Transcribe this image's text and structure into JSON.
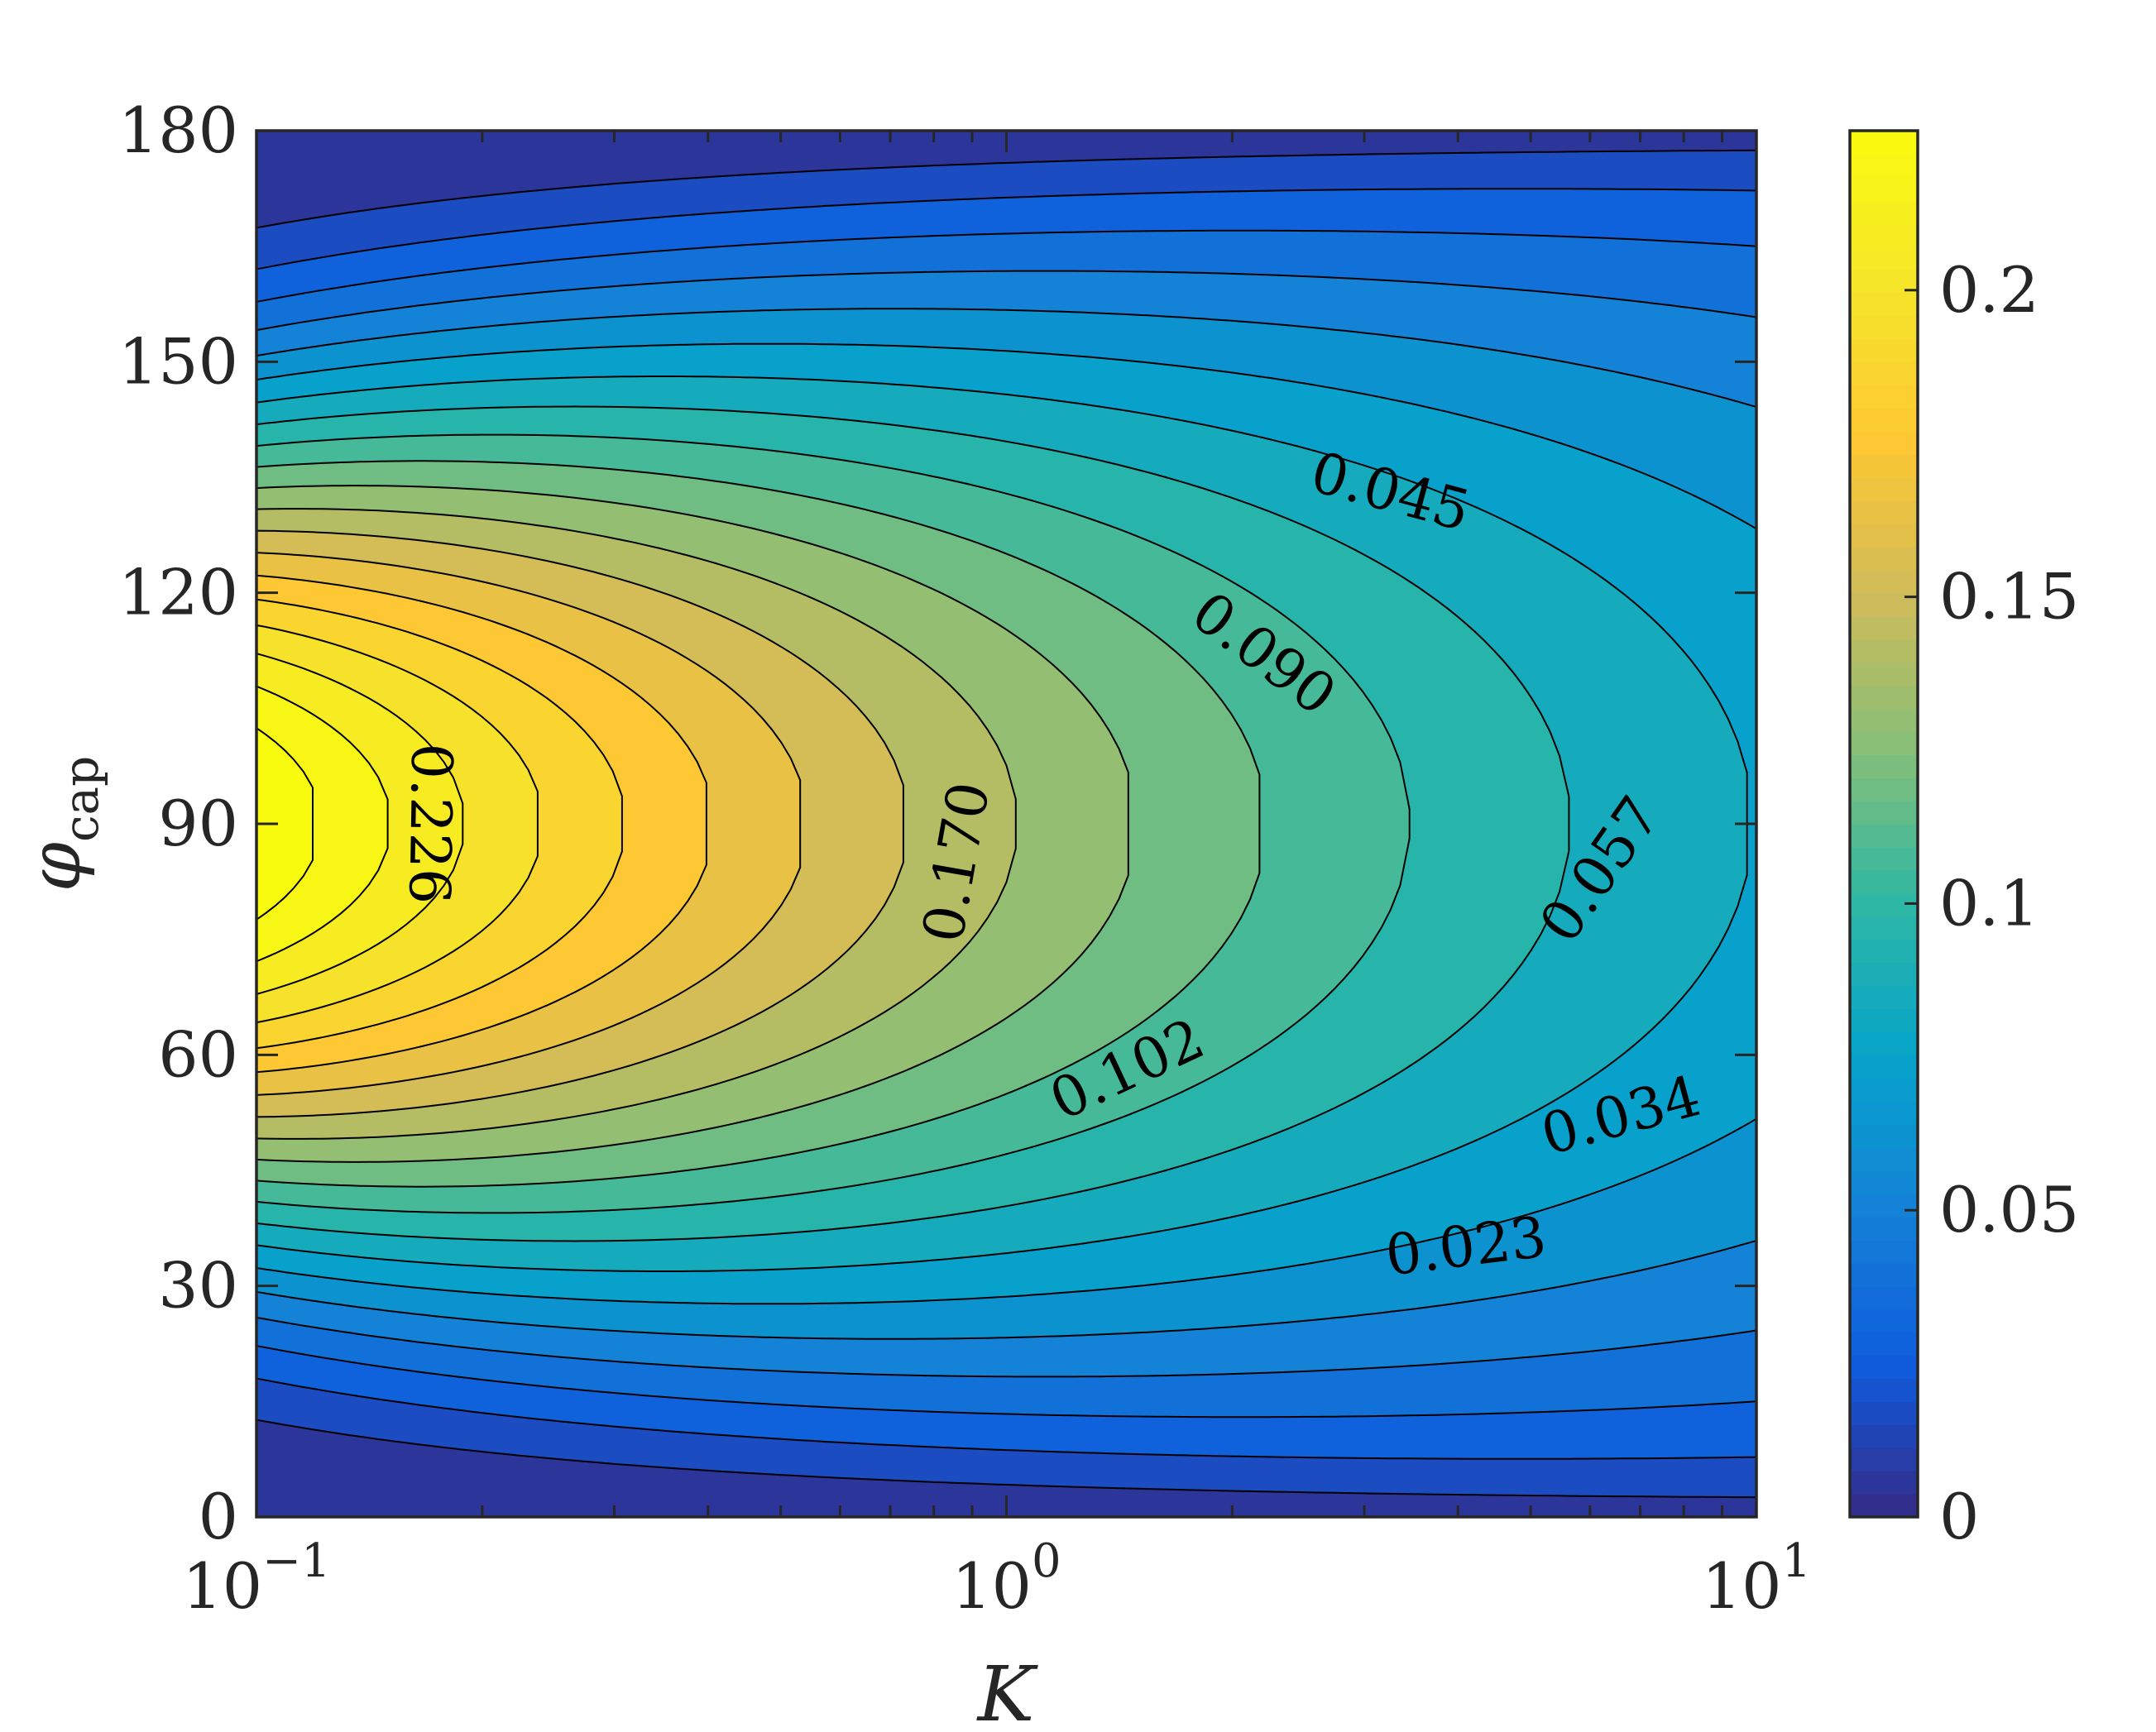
{
  "chart_data": {
    "type": "contour",
    "title": "",
    "xlabel": "Κ",
    "ylabel": "φ",
    "ylabel_sub": "cap",
    "xscale": "log",
    "xlim": [
      0.1,
      10
    ],
    "ylim": [
      0,
      180
    ],
    "x_ticks": [
      {
        "value": 0.1,
        "base": "10",
        "exp": "−1"
      },
      {
        "value": 1,
        "base": "10",
        "exp": "0"
      },
      {
        "value": 10,
        "base": "10",
        "exp": "1"
      }
    ],
    "y_ticks": [
      {
        "value": 0,
        "label": "0"
      },
      {
        "value": 30,
        "label": "30"
      },
      {
        "value": 60,
        "label": "60"
      },
      {
        "value": 90,
        "label": "90"
      },
      {
        "value": 120,
        "label": "120"
      },
      {
        "value": 150,
        "label": "150"
      },
      {
        "value": 180,
        "label": "180"
      }
    ],
    "field_peak": {
      "x": 0.1,
      "y": 90,
      "value": 0.237
    },
    "contour_levels": [
      0.0113,
      0.0226,
      0.0339,
      0.0452,
      0.0565,
      0.0678,
      0.0791,
      0.0904,
      0.1017,
      0.113,
      0.1243,
      0.1356,
      0.1469,
      0.1582,
      0.1695,
      0.1808,
      0.1921,
      0.2034,
      0.2147,
      0.226
    ],
    "contour_labels": [
      {
        "text": "0.045",
        "level": 0.0452,
        "x": 3.25,
        "y": 133,
        "angle": 15
      },
      {
        "text": "0.090",
        "level": 0.0904,
        "x": 2.2,
        "y": 112,
        "angle": 37
      },
      {
        "text": "0.226",
        "level": 0.226,
        "x": 0.17,
        "y": 90,
        "angle": 91
      },
      {
        "text": "0.170",
        "level": 0.1695,
        "x": 0.86,
        "y": 85,
        "angle": -80
      },
      {
        "text": "0.102",
        "level": 0.1017,
        "x": 1.45,
        "y": 58,
        "angle": -25
      },
      {
        "text": "0.057",
        "level": 0.0565,
        "x": 6.2,
        "y": 84,
        "angle": -55
      },
      {
        "text": "0.034",
        "level": 0.0339,
        "x": 6.6,
        "y": 52,
        "angle": -15
      },
      {
        "text": "0.023",
        "level": 0.0226,
        "x": 4.1,
        "y": 35,
        "angle": -7
      }
    ],
    "colorbar": {
      "min": 0,
      "max": 0.226,
      "ticks": [
        {
          "value": 0,
          "label": "0"
        },
        {
          "value": 0.05,
          "label": "0.05"
        },
        {
          "value": 0.1,
          "label": "0.1"
        },
        {
          "value": 0.15,
          "label": "0.15"
        },
        {
          "value": 0.2,
          "label": "0.2"
        }
      ]
    },
    "colormap": [
      "#352a87",
      "#0f5cdd",
      "#1481d6",
      "#06a4ca",
      "#2eb7a4",
      "#87bf77",
      "#d1bb59",
      "#fec832",
      "#f5e52a",
      "#f9fb0e"
    ],
    "grid": false,
    "legend": "none"
  }
}
